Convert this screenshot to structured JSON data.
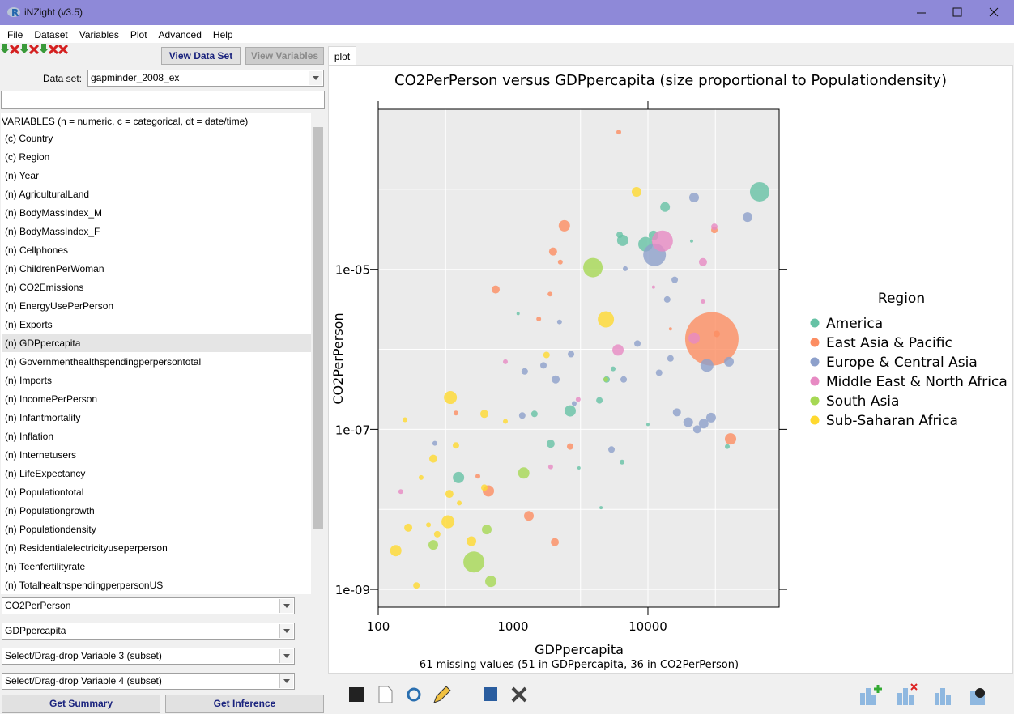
{
  "window": {
    "title": "iNZight (v3.5)"
  },
  "menu": [
    "File",
    "Dataset",
    "Variables",
    "Plot",
    "Advanced",
    "Help"
  ],
  "left_panel": {
    "buttons": [
      "View Data Set",
      "View Variables"
    ],
    "dataset_label": "Data set:",
    "dataset": "gapminder_2008_ex",
    "variables_header": "VARIABLES (n = numeric, c = categorical, dt = date/time)",
    "variables": [
      "(c) Country",
      "(c) Region",
      "(n) Year",
      "(n) AgriculturalLand",
      "(n) BodyMassIndex_M",
      "(n) BodyMassIndex_F",
      "(n) Cellphones",
      "(n) ChildrenPerWoman",
      "(n) CO2Emissions",
      "(n) EnergyUsePerPerson",
      "(n) Exports",
      "(n) GDPpercapita",
      "(n) Governmenthealthspendingperpersontotal",
      "(n) Imports",
      "(n) IncomePerPerson",
      "(n) Infantmortality",
      "(n) Inflation",
      "(n) Internetusers",
      "(n) LifeExpectancy",
      "(n) Populationtotal",
      "(n) Populationgrowth",
      "(n) Populationdensity",
      "(n) Residentialelectricityuseperperson",
      "(n) Teenfertilityrate",
      "(n) TotalhealthspendingperpersonUS"
    ],
    "selected_index": 11,
    "variable_slots": [
      "CO2PerPerson",
      "GDPpercapita",
      "Select/Drag-drop Variable 3 (subset)",
      "Select/Drag-drop Variable 4 (subset)"
    ],
    "actions": [
      "Get Summary",
      "Get Inference"
    ]
  },
  "tabs": [
    "plot"
  ],
  "chart_data": {
    "type": "scatter",
    "title": "CO2PerPerson versus GDPpercapita (size proportional to Populationdensity)",
    "x_label": "GDPpercapita",
    "y_label": "CO2PerPerson",
    "note": "61 missing values (51 in GDPpercapita, 36 in CO2PerPerson)",
    "log_x": true,
    "log_y": true,
    "grid": true,
    "background": "#ebebeb",
    "legend": "right",
    "legend_title": "Region",
    "xlim": [
      100,
      94000
    ],
    "ylim": [
      6e-10,
      0.001
    ],
    "xticks": [
      100,
      1000,
      10000
    ],
    "yticks": [
      {
        "value": 1e-05,
        "label": "1e-05"
      },
      {
        "value": 1e-07,
        "label": "1e-07"
      },
      {
        "value": 1e-09,
        "label": "1e-09"
      }
    ],
    "xgrid": [
      100,
      316.2,
      1000,
      3162,
      10000,
      31620
    ],
    "ygrid": [
      0.0001,
      1e-05,
      1e-06,
      1e-07,
      1e-08,
      1e-09
    ],
    "series": [
      {
        "name": "America",
        "color": "#66c2a5",
        "x": [
          67400,
          13400,
          6500,
          9600,
          11000,
          6170,
          2650,
          4370,
          1900,
          394,
          6430,
          5520,
          4940,
          1440,
          4490,
          38800,
          10000,
          3080,
          1090,
          21100
        ],
        "values": [
          9.3e-05,
          6e-05,
          2.3e-05,
          2.06e-05,
          2.65e-05,
          2.7e-05,
          1.7e-07,
          2.3e-07,
          6.6e-08,
          2.5e-08,
          3.9e-08,
          5.7e-07,
          4.2e-07,
          1.56e-07,
          1.05e-08,
          6.1e-08,
          1.15e-07,
          3.3e-08,
          2.8e-06,
          2.26e-05
        ],
        "sizes": [
          900,
          225,
          306,
          506,
          225,
          100,
          306,
          100,
          156,
          306,
          56,
          56,
          100,
          100,
          25,
          56,
          25,
          25,
          25,
          25
        ]
      },
      {
        "name": "East Asia & Pacific",
        "color": "#fc8d62",
        "x": [
          29800,
          2400,
          1980,
          743,
          1880,
          6080,
          41000,
          1310,
          656,
          2040,
          2650,
          31100,
          1550,
          377,
          548,
          14700,
          32400,
          2240
        ],
        "values": [
          1.35e-06,
          3.5e-05,
          1.67e-05,
          5.6e-06,
          4.9e-06,
          0.00052,
          7.6e-08,
          8.3e-09,
          1.7e-08,
          3.9e-09,
          6.1e-08,
          3.1e-05,
          2.4e-06,
          1.6e-07,
          2.6e-08,
          1.8e-06,
          1.56e-06,
          1.23e-05
        ],
        "sizes": [
          6800,
          306,
          156,
          156,
          56,
          56,
          306,
          225,
          306,
          156,
          100,
          100,
          56,
          56,
          56,
          25,
          100,
          56
        ]
      },
      {
        "name": "Europe & Central Asia",
        "color": "#8da0cb",
        "x": [
          11200,
          54800,
          22000,
          27400,
          39900,
          29400,
          25900,
          19900,
          16400,
          23200,
          12100,
          14700,
          15800,
          13900,
          8360,
          6610,
          2070,
          2690,
          1680,
          1220,
          1170,
          5370,
          263,
          2840,
          6790,
          2210
        ],
        "values": [
          1.52e-05,
          4.5e-05,
          7.9e-05,
          6.3e-07,
          7e-07,
          1.4e-07,
          1.18e-07,
          1.23e-07,
          1.63e-07,
          1e-07,
          5.1e-07,
          7.7e-07,
          7.4e-06,
          4.2e-06,
          1.18e-06,
          4.2e-07,
          4.2e-07,
          8.7e-07,
          6.3e-07,
          5.3e-07,
          1.49e-07,
          5.6e-08,
          6.7e-08,
          2.1e-07,
          1.02e-05,
          2.2e-06
        ],
        "sizes": [
          1225,
          225,
          225,
          400,
          225,
          225,
          225,
          225,
          156,
          156,
          100,
          100,
          100,
          100,
          100,
          100,
          156,
          100,
          100,
          100,
          100,
          100,
          56,
          56,
          56,
          56
        ]
      },
      {
        "name": "Middle East & North Africa",
        "color": "#e78ac3",
        "x": [
          12800,
          22000,
          6000,
          25600,
          31100,
          25600,
          3040,
          1900,
          877,
          147,
          11000
        ],
        "values": [
          2.26e-05,
          1.38e-06,
          9.8e-07,
          1.23e-05,
          3.4e-05,
          4e-06,
          2.37e-07,
          3.4e-08,
          7e-07,
          1.67e-08,
          6e-06
        ],
        "sizes": [
          1056,
          306,
          306,
          156,
          100,
          56,
          56,
          56,
          56,
          56,
          25
        ]
      },
      {
        "name": "South Asia",
        "color": "#a6d854",
        "x": [
          3910,
          512,
          684,
          1200,
          638,
          256,
          4880
        ],
        "values": [
          1.05e-05,
          2.2e-09,
          1.26e-09,
          2.85e-08,
          5.6e-09,
          3.6e-09,
          4.2e-07
        ],
        "sizes": [
          900,
          1056,
          306,
          306,
          225,
          225,
          56
        ]
      },
      {
        "name": "Sub-Saharan Africa",
        "color": "#ffd92f",
        "x": [
          4880,
          8240,
          343,
          329,
          135,
          612,
          256,
          337,
          491,
          167,
          377,
          274,
          192,
          158,
          1770,
          612,
          236,
          399,
          208,
          877
        ],
        "values": [
          2.37e-06,
          9.3e-05,
          2.5e-07,
          7e-09,
          3.05e-09,
          1.56e-07,
          4.3e-08,
          1.56e-08,
          4e-09,
          5.9e-09,
          6.3e-08,
          4.9e-09,
          1.12e-09,
          1.32e-07,
          8.5e-07,
          1.87e-08,
          6.4e-09,
          1.2e-08,
          2.5e-08,
          1.26e-07
        ],
        "sizes": [
          625,
          225,
          400,
          400,
          306,
          156,
          156,
          156,
          225,
          156,
          100,
          100,
          100,
          56,
          100,
          100,
          56,
          56,
          56,
          56
        ]
      }
    ]
  }
}
